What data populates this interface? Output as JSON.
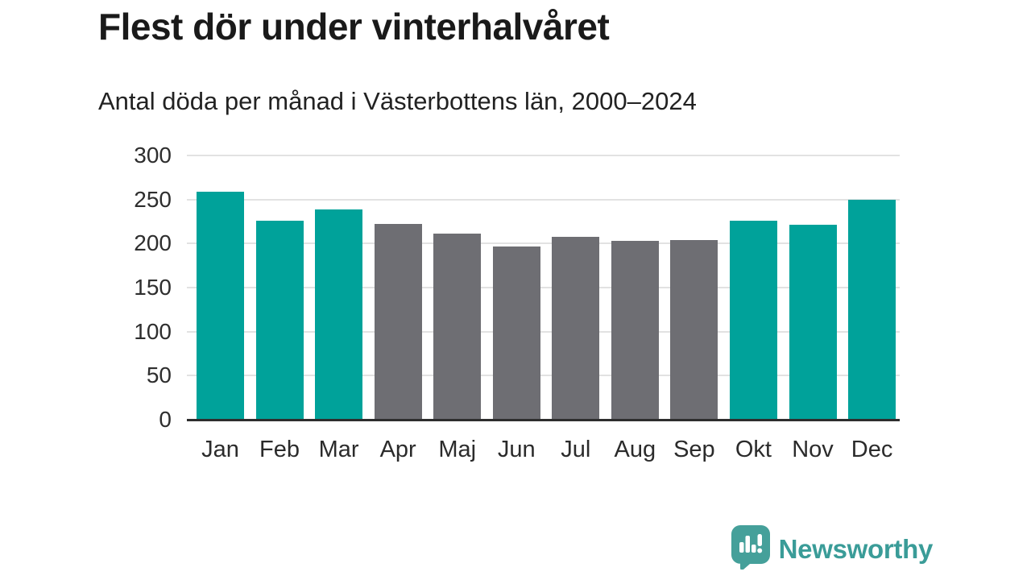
{
  "header": {},
  "chart_data": {
    "type": "bar",
    "title": "Flest dör under vinterhalvåret",
    "subtitle": "Antal döda per månad i Västerbottens län, 2000–2024",
    "categories": [
      "Jan",
      "Feb",
      "Mar",
      "Apr",
      "Maj",
      "Jun",
      "Jul",
      "Aug",
      "Sep",
      "Okt",
      "Nov",
      "Dec"
    ],
    "values": [
      258,
      225,
      238,
      221,
      210,
      196,
      207,
      202,
      203,
      225,
      220,
      249
    ],
    "bar_colors": [
      "teal",
      "teal",
      "teal",
      "gray",
      "gray",
      "gray",
      "gray",
      "gray",
      "gray",
      "teal",
      "teal",
      "teal"
    ],
    "colors": {
      "teal": "#00a29a",
      "gray": "#6e6e73"
    },
    "xlabel": "",
    "ylabel": "",
    "ylim": [
      0,
      300
    ],
    "yticks": [
      0,
      50,
      100,
      150,
      200,
      250,
      300
    ],
    "grid": true,
    "legend": false
  },
  "footer": {
    "brand": "Newsworthy",
    "brand_color": "#3a9c98",
    "logo_color": "#45a09a",
    "logo_icon": "bar-chart-speech-bubble-icon"
  }
}
